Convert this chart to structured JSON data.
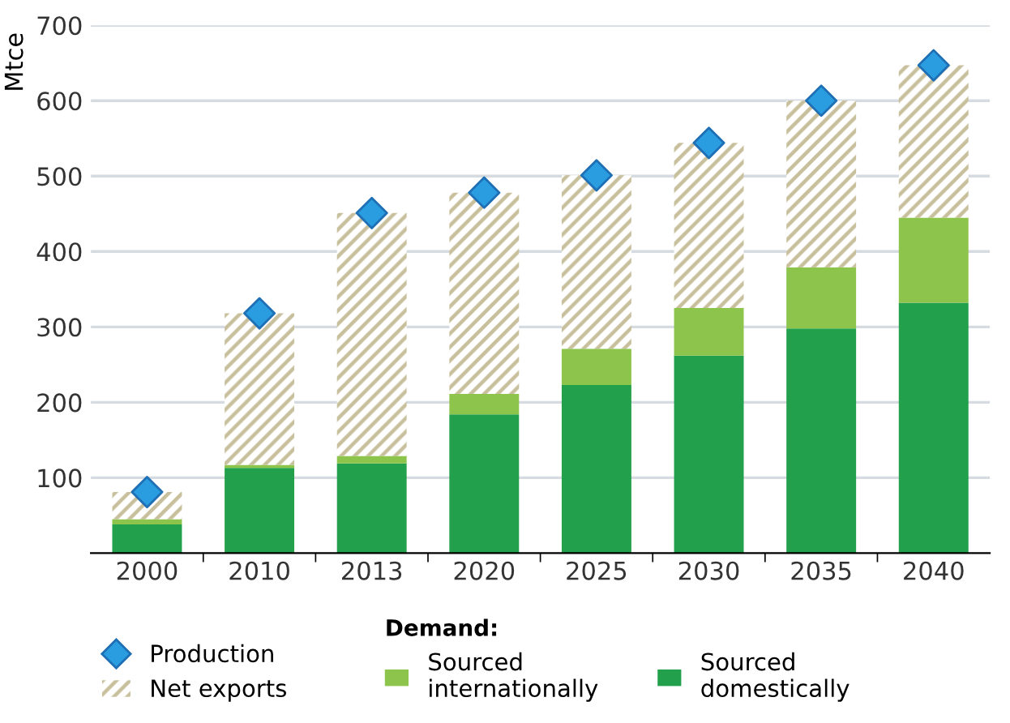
{
  "chart_data": {
    "type": "bar",
    "ylabel": "Mtce",
    "stacked": true,
    "categories": [
      "2000",
      "2010",
      "2013",
      "2020",
      "2025",
      "2030",
      "2035",
      "2040"
    ],
    "series": [
      {
        "name": "Sourced domestically",
        "color": "#22a04b",
        "values": [
          38,
          113,
          119,
          184,
          223,
          262,
          298,
          332
        ]
      },
      {
        "name": "Sourced internationally",
        "color": "#8dc44c",
        "values": [
          7,
          4,
          10,
          27,
          48,
          63,
          81,
          113
        ]
      },
      {
        "name": "Net exports",
        "color": "#c8bf9c",
        "values": [
          36,
          201,
          322,
          267,
          230,
          219,
          221,
          202
        ]
      },
      {
        "name": "Production",
        "type": "scatter",
        "marker": "diamond",
        "color": "#2a9de0",
        "values": [
          81,
          318,
          451,
          478,
          501,
          544,
          600,
          647
        ]
      }
    ],
    "ylim": [
      0,
      700
    ],
    "yticks": [
      100,
      200,
      300,
      400,
      500,
      600,
      700
    ],
    "grid": "y",
    "legend": "bottom",
    "legend_title": "Demand:"
  }
}
